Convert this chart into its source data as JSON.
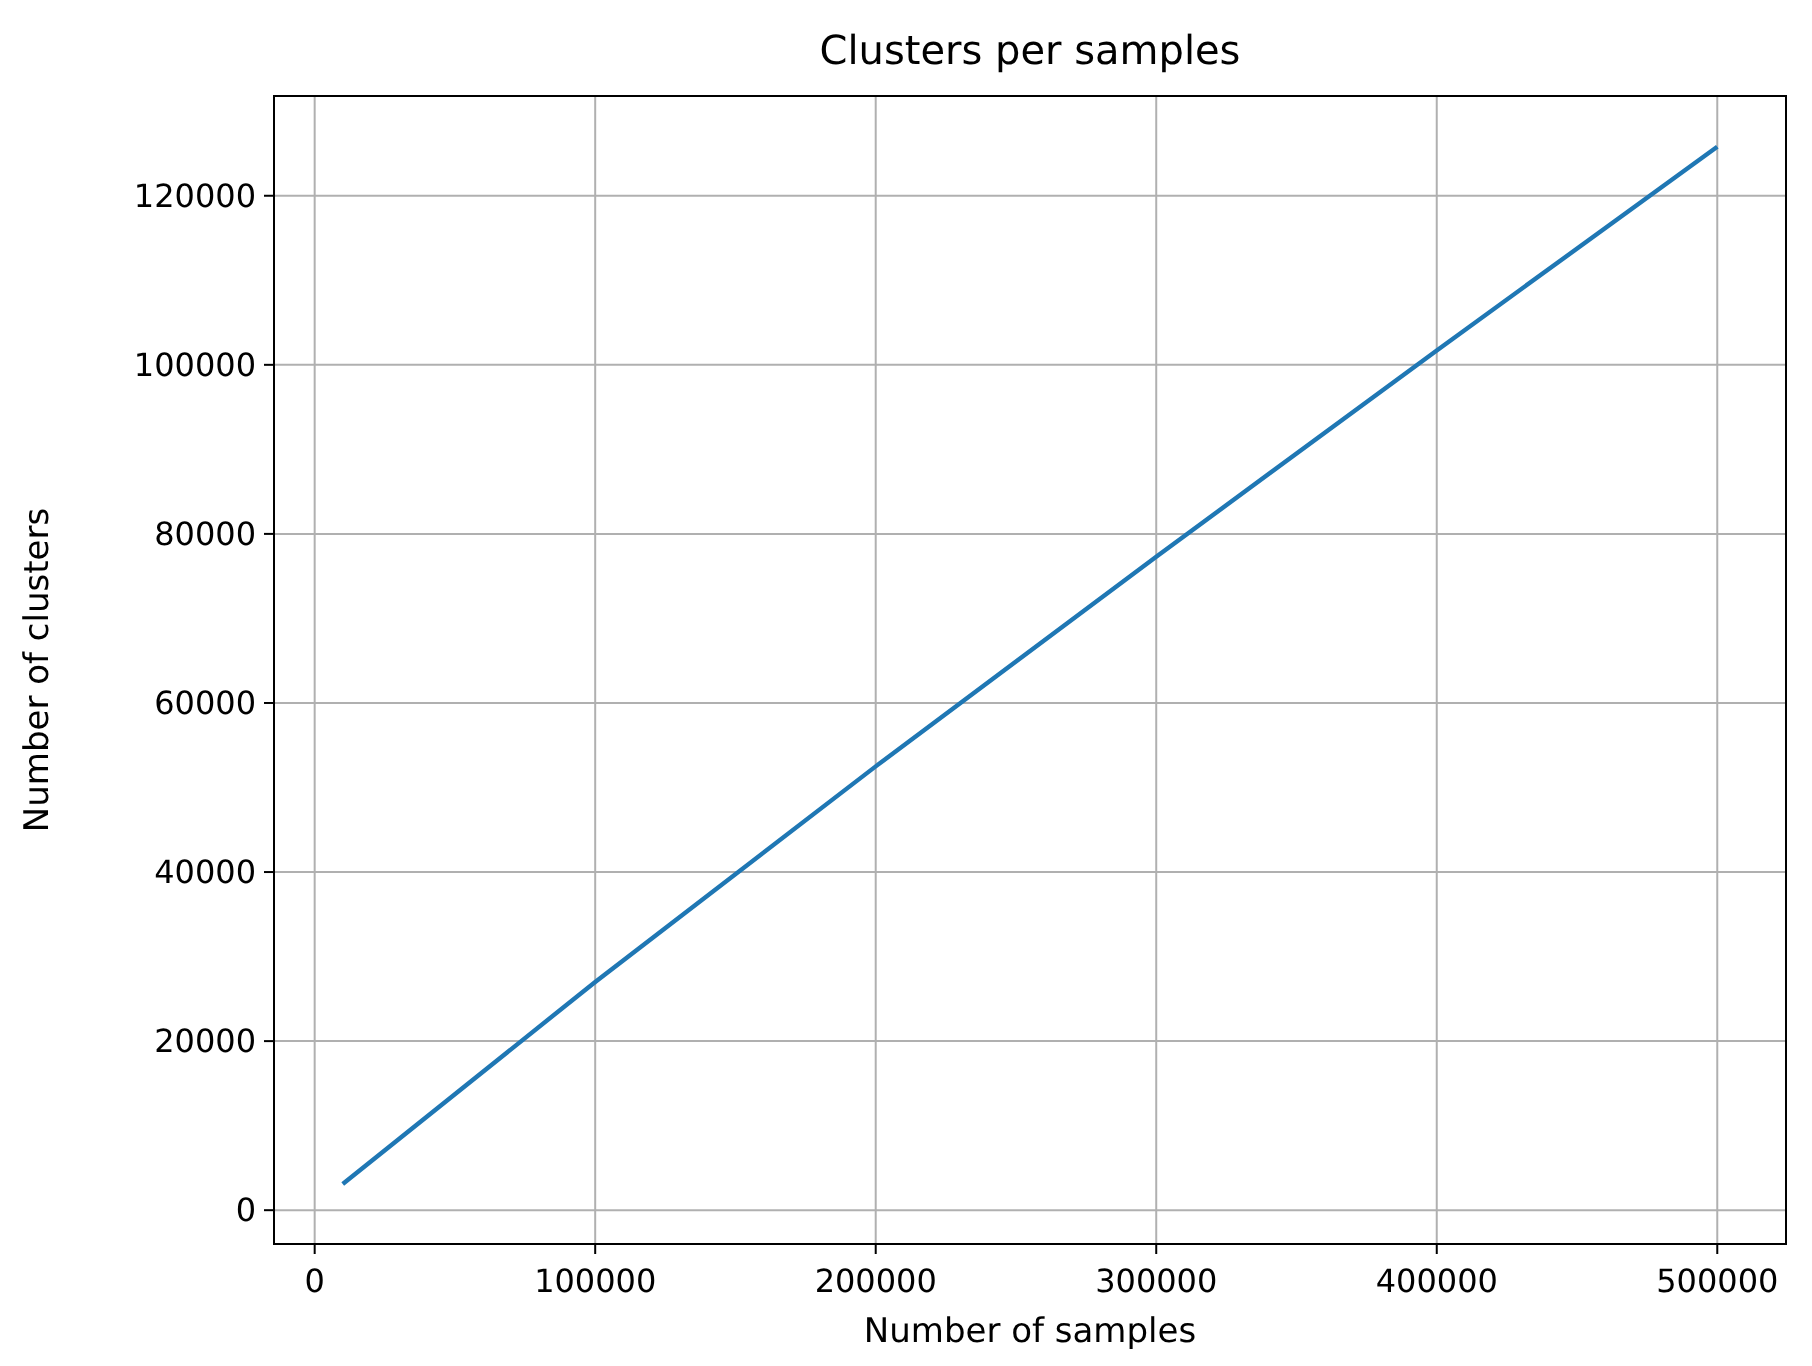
{
  "chart_data": {
    "type": "line",
    "title": "Clusters per samples",
    "xlabel": "Number of samples",
    "ylabel": "Number of clusters",
    "x": [
      10000,
      100000,
      200000,
      300000,
      400000,
      500000
    ],
    "series": [
      {
        "color": "#1f77b4",
        "values": [
          3100,
          27000,
          52500,
          77300,
          101700,
          125800
        ]
      }
    ],
    "xlim": [
      -14500,
      524500
    ],
    "xticks": [
      0,
      100000,
      200000,
      300000,
      400000,
      500000
    ],
    "ylim": [
      -4000,
      131800
    ],
    "yticks": [
      0,
      20000,
      40000,
      60000,
      80000,
      100000,
      120000
    ],
    "grid": true
  }
}
